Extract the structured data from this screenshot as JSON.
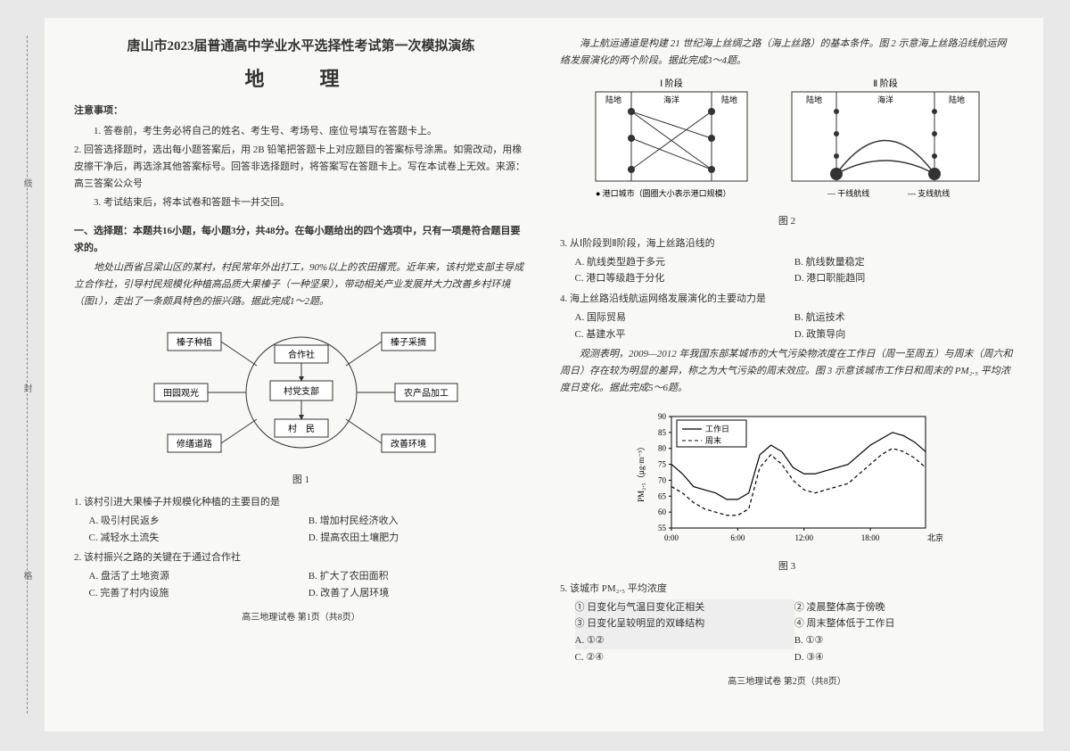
{
  "binding": {
    "l1": "线",
    "l2": "封",
    "l3": "格"
  },
  "header": {
    "main": "唐山市2023届普通高中学业水平选择性考试第一次模拟演练",
    "subject": "地　理"
  },
  "notice": {
    "head": "注意事项：",
    "n1": "1. 答卷前，考生务必将自己的姓名、考生号、考场号、座位号填写在答题卡上。",
    "n2": "2. 回答选择题时，选出每小题答案后，用 2B 铅笔把答题卡上对应题目的答案标号涂黑。如需改动，用橡皮擦干净后，再选涂其他答案标号。回答非选择题时，将答案写在答题卡上。写在本试卷上无效。来源：高三答案公众号",
    "n3": "3. 考试结束后，将本试卷和答题卡一并交回。"
  },
  "part1": {
    "head": "一、选择题：本题共16小题，每小题3分，共48分。在每小题给出的四个选项中，只有一项是符合题目要求的。",
    "intro": "地处山西省吕梁山区的某村，村民常年外出打工，90%以上的农田撂荒。近年来，该村党支部主导成立合作社，引导村民规模化种植高品质大果榛子（一种坚果），带动相关产业发展并大力改善乡村环境（图1），走出了一条颇具特色的振兴路。据此完成1～2题。"
  },
  "fig1": {
    "caption": "图 1",
    "nodes": {
      "top": "合作社",
      "mid": "村党支部",
      "bot": "村　民",
      "out": [
        "榛子种植",
        "榛子采摘",
        "田园观光",
        "农产品加工",
        "修缮道路",
        "改善环境"
      ]
    }
  },
  "q1": {
    "stem": "1. 该村引进大果榛子并规模化种植的主要目的是",
    "a": "A. 吸引村民返乡",
    "b": "B. 增加村民经济收入",
    "c": "C. 减轻水土流失",
    "d": "D. 提高农田土壤肥力"
  },
  "q2": {
    "stem": "2. 该村振兴之路的关键在于通过合作社",
    "a": "A. 盘活了土地资源",
    "b": "B. 扩大了农田面积",
    "c": "C. 完善了村内设施",
    "d": "D. 改善了人居环境"
  },
  "footer1": "高三地理试卷 第1页（共8页）",
  "col2intro": "海上航运通道是构建 21 世纪海上丝绸之路（海上丝路）的基本条件。图 2 示意海上丝路沿线航运网络发展演化的两个阶段。据此完成3～4题。",
  "fig2": {
    "caption": "图 2",
    "p1": "Ⅰ 阶段",
    "p2": "Ⅱ 阶段",
    "land": "陆地",
    "sea": "海洋",
    "legend1": "● 港口城市（圆圈大小表示港口规模）",
    "legend2": "— 干线航线",
    "legend3": "--- 支线航线"
  },
  "q3": {
    "stem": "3. 从Ⅰ阶段到Ⅱ阶段，海上丝路沿线的",
    "a": "A. 航线类型趋于多元",
    "b": "B. 航线数量稳定",
    "c": "C. 港口等级趋于分化",
    "d": "D. 港口职能趋同"
  },
  "q4": {
    "stem": "4. 海上丝路沿线航运网络发展演化的主要动力是",
    "a": "A. 国际贸易",
    "b": "B. 航运技术",
    "c": "C. 基建水平",
    "d": "D. 政策导向"
  },
  "intro56": "观测表明，2009—2012 年我国东部某城市的大气污染物浓度在工作日（周一至周五）与周末（周六和周日）存在较为明显的差异，称之为大气污染的周末效应。图 3 示意该城市工作日和周末的 PM₂.₅ 平均浓度日变化。据此完成5～6题。",
  "fig3": {
    "caption": "图 3",
    "ylabel": "PM₂.₅（µg·m⁻³）",
    "xlabel": "北京时间",
    "legend_work": "工作日",
    "legend_weekend": "周末",
    "ylim": [
      55,
      90
    ],
    "ytick": [
      55,
      60,
      65,
      70,
      75,
      80,
      85,
      90
    ],
    "xtick": [
      "0:00",
      "6:00",
      "12:00",
      "18:00"
    ],
    "work_y": [
      75,
      72,
      68,
      67,
      66,
      64,
      64,
      66,
      78,
      81,
      79,
      74,
      72,
      72,
      73,
      74,
      75,
      78,
      81,
      83,
      85,
      84,
      82,
      79
    ],
    "weekend_y": [
      68,
      66,
      63,
      61,
      60,
      59,
      59,
      61,
      74,
      78,
      75,
      70,
      67,
      66,
      67,
      68,
      69,
      72,
      75,
      78,
      80,
      79,
      77,
      74
    ],
    "colors": {
      "axis": "#000000",
      "work": "#000000",
      "weekend": "#000000",
      "bg": "#ffffff"
    }
  },
  "q5": {
    "stem": "5. 该城市 PM₂.₅ 平均浓度",
    "s1": "① 日变化与气温日变化正相关",
    "s2": "② 凌晨整体高于傍晚",
    "s3": "③ 日变化呈较明显的双峰结构",
    "s4": "④ 周末整体低于工作日",
    "a": "A. ①②",
    "b": "B. ①③",
    "c": "C. ②④",
    "d": "D. ③④"
  },
  "footer2": "高三地理试卷 第2页（共8页）"
}
